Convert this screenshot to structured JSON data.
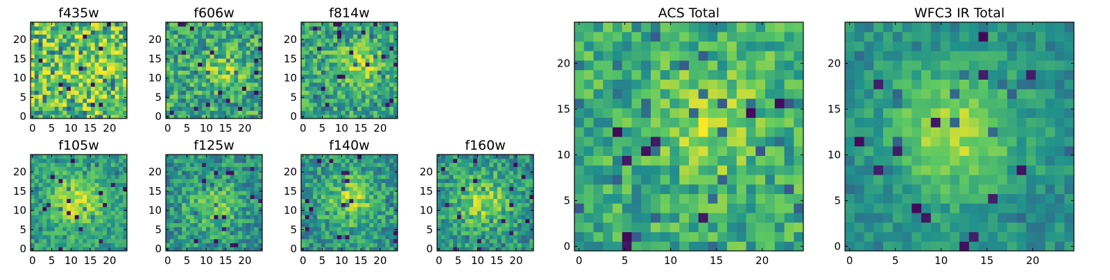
{
  "figure": {
    "type": "heatmap_grid",
    "colormap": "viridis",
    "colormap_stops": [
      "#440154",
      "#3b528b",
      "#21918c",
      "#5ec962",
      "#fde725"
    ]
  },
  "chart_data": [
    {
      "type": "heatmap",
      "title": "f435w",
      "grid": [
        24,
        24
      ],
      "xticks": [
        0,
        5,
        10,
        15,
        20
      ],
      "yticks": [
        0,
        5,
        10,
        15,
        20
      ],
      "xlim": [
        0,
        24
      ],
      "ylim": [
        0,
        24
      ],
      "seed": 11,
      "peak": [
        13,
        12
      ],
      "sigma": 6,
      "signal": 0.05,
      "noise": 0.3,
      "base": 0.72,
      "low_cut": 0.28
    },
    {
      "type": "heatmap",
      "title": "f606w",
      "grid": [
        24,
        24
      ],
      "xticks": [
        0,
        5,
        10,
        15,
        20
      ],
      "yticks": [
        0,
        5,
        10,
        15,
        20
      ],
      "xlim": [
        0,
        24
      ],
      "ylim": [
        0,
        24
      ],
      "seed": 22,
      "peak": [
        14,
        12
      ],
      "sigma": 3.5,
      "signal": 0.18,
      "noise": 0.24,
      "base": 0.6,
      "low_cut": 0.28
    },
    {
      "type": "heatmap",
      "title": "f814w",
      "grid": [
        24,
        24
      ],
      "xticks": [
        0,
        5,
        10,
        15,
        20
      ],
      "yticks": [
        0,
        5,
        10,
        15,
        20
      ],
      "xlim": [
        0,
        24
      ],
      "ylim": [
        0,
        24
      ],
      "seed": 33,
      "peak": [
        14,
        13
      ],
      "sigma": 4,
      "signal": 0.24,
      "noise": 0.22,
      "base": 0.6,
      "low_cut": 0.26
    },
    {
      "type": "heatmap",
      "title": "f105w",
      "grid": [
        24,
        24
      ],
      "xticks": [
        0,
        5,
        10,
        15,
        20
      ],
      "yticks": [
        0,
        5,
        10,
        15,
        20
      ],
      "xlim": [
        0,
        24
      ],
      "ylim": [
        0,
        24
      ],
      "seed": 44,
      "peak": [
        11,
        12
      ],
      "sigma": 5,
      "signal": 0.32,
      "noise": 0.16,
      "base": 0.55,
      "low_cut": 0.3
    },
    {
      "type": "heatmap",
      "title": "f125w",
      "grid": [
        24,
        24
      ],
      "xticks": [
        0,
        5,
        10,
        15,
        20
      ],
      "yticks": [
        0,
        5,
        10,
        15,
        20
      ],
      "xlim": [
        0,
        24
      ],
      "ylim": [
        0,
        24
      ],
      "seed": 55,
      "peak": [
        11,
        11
      ],
      "sigma": 4.5,
      "signal": 0.3,
      "noise": 0.2,
      "base": 0.5,
      "low_cut": 0.3
    },
    {
      "type": "heatmap",
      "title": "f140w",
      "grid": [
        24,
        24
      ],
      "xticks": [
        0,
        5,
        10,
        15,
        20
      ],
      "yticks": [
        0,
        5,
        10,
        15,
        20
      ],
      "xlim": [
        0,
        24
      ],
      "ylim": [
        0,
        24
      ],
      "seed": 66,
      "peak": [
        12,
        12
      ],
      "sigma": 4.5,
      "signal": 0.3,
      "noise": 0.2,
      "base": 0.52,
      "low_cut": 0.28
    },
    {
      "type": "heatmap",
      "title": "f160w",
      "grid": [
        24,
        24
      ],
      "xticks": [
        0,
        5,
        10,
        15,
        20
      ],
      "yticks": [
        0,
        5,
        10,
        15,
        20
      ],
      "xlim": [
        0,
        24
      ],
      "ylim": [
        0,
        24
      ],
      "seed": 77,
      "peak": [
        11,
        12
      ],
      "sigma": 4.5,
      "signal": 0.32,
      "noise": 0.2,
      "base": 0.52,
      "low_cut": 0.28
    },
    {
      "type": "heatmap",
      "title": "ACS Total",
      "grid": [
        24,
        24
      ],
      "xticks": [
        0,
        5,
        10,
        15,
        20
      ],
      "yticks": [
        0,
        5,
        10,
        15,
        20
      ],
      "xlim": [
        0,
        24
      ],
      "ylim": [
        0,
        24
      ],
      "seed": 88,
      "peak": [
        14,
        13
      ],
      "sigma": 3.5,
      "signal": 0.28,
      "noise": 0.2,
      "base": 0.62,
      "low_cut": 0.26
    },
    {
      "type": "heatmap",
      "title": "WFC3 IR Total",
      "grid": [
        24,
        24
      ],
      "xticks": [
        0,
        5,
        10,
        15,
        20
      ],
      "yticks": [
        0,
        5,
        10,
        15,
        20
      ],
      "xlim": [
        0,
        24
      ],
      "ylim": [
        0,
        24
      ],
      "seed": 99,
      "peak": [
        11,
        12
      ],
      "sigma": 4.5,
      "signal": 0.38,
      "noise": 0.12,
      "base": 0.5,
      "low_cut": 0.3
    }
  ]
}
